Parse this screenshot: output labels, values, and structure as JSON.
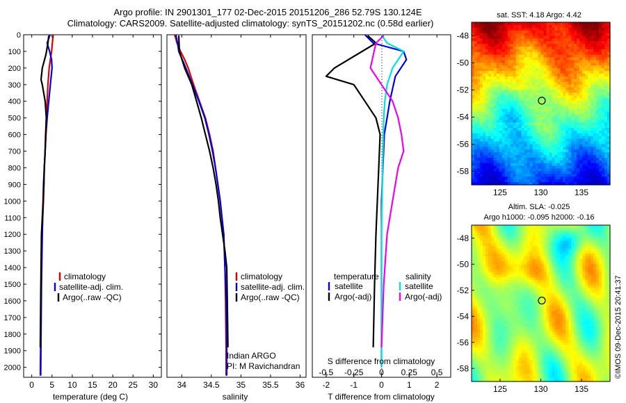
{
  "header": {
    "line1": "Argo profile: IN 2901301_177 02-Dec-2015 20151206_286 52.79S 130.124E",
    "line2": "Climatology: CARS2009. Satellite-adjusted climatology: synTS_20151202.nc (0.58d earlier)"
  },
  "colors": {
    "climatology": "#dd0000",
    "satellite": "#0000dd",
    "argo": "#000000",
    "cyan": "#00e0e0",
    "magenta": "#ee00ee"
  },
  "chart_data": [
    {
      "type": "line",
      "id": "temperature",
      "xlabel": "temperature (deg C)",
      "ylabel": "",
      "xlim": [
        -2,
        32
      ],
      "ylim": [
        2060,
        0
      ],
      "xticks": [
        0,
        5,
        10,
        15,
        20,
        25,
        30
      ],
      "yticks": [
        0,
        100,
        200,
        300,
        400,
        500,
        600,
        700,
        800,
        900,
        1000,
        1100,
        1200,
        1300,
        1400,
        1500,
        1600,
        1700,
        1800,
        1900,
        2000
      ],
      "legend": [
        "climatology",
        "satellite-adj. clim.",
        "Argo(..raw -QC)"
      ],
      "series": [
        {
          "key": "climatology",
          "x": [
            5.3,
            5.1,
            4.9,
            4.6,
            4.3,
            4.0,
            3.8,
            3.6,
            3.4,
            3.3,
            3.1,
            3.0,
            2.9,
            2.7,
            2.5,
            2.4,
            2.3,
            2.2,
            2.1
          ],
          "y": [
            0,
            50,
            100,
            150,
            200,
            300,
            400,
            500,
            600,
            700,
            800,
            900,
            1000,
            1100,
            1200,
            1350,
            1500,
            1800,
            2050
          ]
        },
        {
          "key": "satellite",
          "x": [
            4.5,
            3.8,
            4.4,
            4.9,
            5.0,
            4.6,
            4.2,
            3.8,
            3.5,
            3.3,
            3.1,
            2.9,
            2.8,
            2.7,
            2.6,
            2.5,
            2.4,
            2.3,
            2.2
          ],
          "y": [
            0,
            50,
            100,
            150,
            200,
            300,
            400,
            500,
            600,
            700,
            800,
            900,
            1000,
            1100,
            1200,
            1350,
            1500,
            1800,
            2050
          ]
        },
        {
          "key": "argo",
          "x": [
            4.2,
            4.0,
            3.5,
            2.6,
            2.3,
            2.6,
            3.3,
            3.6,
            3.5,
            3.3,
            3.1,
            3.0,
            2.8,
            2.6,
            2.4,
            2.3,
            2.2,
            2.1
          ],
          "y": [
            5,
            50,
            120,
            200,
            270,
            300,
            400,
            500,
            600,
            700,
            800,
            900,
            1000,
            1100,
            1200,
            1400,
            1600,
            1880
          ]
        }
      ]
    },
    {
      "type": "line",
      "id": "salinity",
      "xlabel": "salinity",
      "ylabel": "",
      "xlim": [
        33.75,
        36.1
      ],
      "ylim": [
        2060,
        0
      ],
      "xticks": [
        34,
        34.5,
        35,
        35.5,
        36
      ],
      "legend": [
        "climatology",
        "satellite-adj. clim.",
        "Argo(..raw -QC)"
      ],
      "annotation": [
        "Indian ARGO",
        "PI: M Ravichandran"
      ],
      "series": [
        {
          "key": "climatology",
          "x": [
            33.88,
            33.92,
            33.98,
            34.05,
            34.11,
            34.2,
            34.3,
            34.4,
            34.47,
            34.53,
            34.57,
            34.61,
            34.65,
            34.68,
            34.71,
            34.73,
            34.74,
            34.75,
            34.75
          ],
          "y": [
            0,
            50,
            100,
            150,
            200,
            300,
            400,
            500,
            600,
            700,
            800,
            900,
            1000,
            1100,
            1200,
            1400,
            1600,
            1900,
            2050
          ]
        },
        {
          "key": "satellite",
          "x": [
            33.9,
            33.93,
            33.95,
            34.01,
            34.07,
            34.18,
            34.29,
            34.39,
            34.46,
            34.52,
            34.57,
            34.61,
            34.65,
            34.68,
            34.71,
            34.73,
            34.75,
            34.76,
            34.76
          ],
          "y": [
            0,
            50,
            100,
            150,
            200,
            300,
            400,
            500,
            600,
            700,
            800,
            900,
            1000,
            1100,
            1200,
            1400,
            1600,
            1900,
            2050
          ]
        },
        {
          "key": "argo",
          "x": [
            33.95,
            33.96,
            34.05,
            34.17,
            34.25,
            34.33,
            34.4,
            34.47,
            34.53,
            34.58,
            34.62,
            34.65,
            34.69,
            34.73,
            34.76,
            34.77,
            34.78
          ],
          "y": [
            5,
            100,
            200,
            300,
            400,
            500,
            600,
            700,
            800,
            900,
            1000,
            1100,
            1200,
            1300,
            1400,
            1600,
            1880
          ]
        }
      ]
    },
    {
      "type": "line",
      "id": "difference",
      "xlabel": "T difference from climatology",
      "x2label": "S difference from climatology",
      "xlim": [
        -2.5,
        2.5
      ],
      "x2lim": [
        -0.625,
        0.625
      ],
      "ylim": [
        2060,
        0
      ],
      "xticks": [
        -2,
        -1,
        0,
        1,
        2
      ],
      "x2ticks": [
        -0.5,
        -0.25,
        0,
        0.25,
        0.5
      ],
      "x2ticklabels": [
        "-0.5",
        "-0.25",
        "0",
        "0.25",
        "0.5"
      ],
      "legend_temperature": {
        "title": "temperature",
        "items": [
          "satellite",
          "Argo(-adj)"
        ]
      },
      "legend_salinity": {
        "title": "salinity",
        "items": [
          "satellite",
          "Argo(-adj)"
        ]
      },
      "series": [
        {
          "key": "T satellite",
          "axis": "T",
          "x": [
            -0.6,
            -0.3,
            0.8,
            0.9,
            0.5,
            0.3,
            0.2,
            0.1,
            0.05,
            0,
            0,
            0
          ],
          "y": [
            0,
            50,
            100,
            150,
            250,
            400,
            500,
            600,
            800,
            1000,
            1500,
            2000
          ]
        },
        {
          "key": "T Argo(-adj)",
          "axis": "T",
          "x": [
            -0.5,
            -0.2,
            -1.7,
            -2.0,
            -1.0,
            -0.6,
            -0.2,
            -0.05,
            -0.1,
            -0.15,
            -0.2,
            -0.25,
            -0.3
          ],
          "y": [
            5,
            50,
            200,
            250,
            300,
            400,
            500,
            600,
            800,
            1000,
            1200,
            1500,
            1880
          ]
        },
        {
          "key": "S satellite",
          "axis": "S",
          "x": [
            0,
            0.05,
            0.2,
            0.15,
            0.1,
            0.05,
            0.03,
            0.02,
            0.01,
            0,
            0
          ],
          "y": [
            0,
            50,
            100,
            150,
            200,
            300,
            400,
            500,
            800,
            1200,
            2000
          ]
        },
        {
          "key": "S Argo(-adj)",
          "axis": "S",
          "x": [
            0.02,
            -0.05,
            -0.1,
            0.0,
            0.1,
            0.15,
            0.18,
            0.2,
            0.15,
            0.1,
            0.05,
            0.02,
            0.0
          ],
          "y": [
            5,
            50,
            200,
            300,
            400,
            500,
            600,
            700,
            800,
            1000,
            1200,
            1500,
            1880
          ]
        }
      ]
    },
    {
      "type": "heatmap",
      "id": "sst",
      "title": "sat. SST: 4.18 Argo: 4.42",
      "xlim": [
        121.5,
        138.5
      ],
      "ylim": [
        -59,
        -47
      ],
      "xticks": [
        125,
        130,
        135
      ],
      "yticks": [
        -48,
        -50,
        -52,
        -54,
        -56,
        -58
      ],
      "marker": {
        "lon": 130.124,
        "lat": -52.79
      }
    },
    {
      "type": "heatmap",
      "id": "sla",
      "title_line1": "Altim. SLA: -0.025",
      "title_line2": "Argo h1000: -0.095 h2000: -0.16",
      "xlim": [
        121.5,
        138.5
      ],
      "ylim": [
        -59,
        -47
      ],
      "xticks": [
        125,
        130,
        135
      ],
      "yticks": [
        -48,
        -50,
        -52,
        -54,
        -56,
        -58
      ],
      "marker": {
        "lon": 130.124,
        "lat": -52.79
      },
      "watermark": "©IMOS 09-Dec-2015 20:41:37"
    }
  ]
}
